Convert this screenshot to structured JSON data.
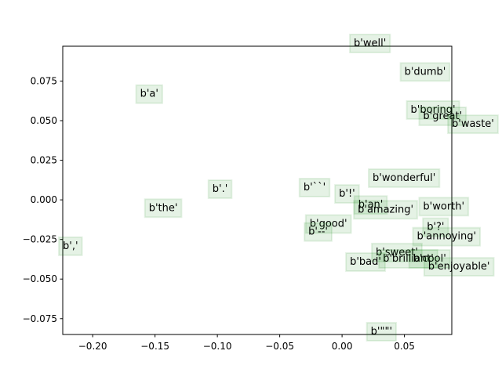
{
  "chart_data": {
    "type": "scatter",
    "labels": [
      "b'well'",
      "b'dumb'",
      "b'a'",
      "b'boring'",
      "b'great'",
      "b'waste'",
      "b'wonderful'",
      "b'.'",
      "b'``'",
      "b'!'",
      "b'the'",
      "b'an'",
      "b'amazing'",
      "b'worth'",
      "b'good'",
      "b'--'",
      "b'?'",
      "b'annoying'",
      "b','",
      "b'sweet'",
      "b'brilliant'",
      "b'cool'",
      "b'bad'",
      "b'enjoyable'",
      "b'\"\"'"
    ],
    "x": [
      0.0094,
      0.05,
      -0.162,
      0.055,
      0.065,
      0.088,
      0.0245,
      -0.104,
      -0.031,
      -0.0025,
      -0.155,
      0.013,
      0.0126,
      0.065,
      -0.026,
      -0.027,
      0.068,
      0.06,
      -0.224,
      0.027,
      0.0327,
      0.057,
      0.0063,
      0.069,
      0.023
    ],
    "values": [
      0.097,
      0.079,
      0.065,
      0.055,
      0.051,
      0.046,
      0.012,
      0.005,
      0.006,
      0.002,
      -0.007,
      -0.005,
      -0.008,
      -0.006,
      -0.017,
      -0.022,
      -0.019,
      -0.025,
      -0.031,
      -0.035,
      -0.039,
      -0.039,
      -0.041,
      -0.044,
      -0.085
    ],
    "color": "#008000",
    "xlim": [
      -0.224,
      0.088
    ],
    "ylim": [
      -0.085,
      0.097
    ],
    "xticks": [
      {
        "value": -0.2,
        "label": "−0.20"
      },
      {
        "value": -0.15,
        "label": "−0.15"
      },
      {
        "value": -0.1,
        "label": "−0.10"
      },
      {
        "value": -0.05,
        "label": "−0.05"
      },
      {
        "value": 0,
        "label": "0.00"
      },
      {
        "value": 0.05,
        "label": "0.05"
      }
    ],
    "yticks": [
      {
        "value": -0.075,
        "label": "−0.075"
      },
      {
        "value": -0.05,
        "label": "−0.050"
      },
      {
        "value": -0.025,
        "label": "−0.025"
      },
      {
        "value": 0,
        "label": "0.000"
      },
      {
        "value": 0.025,
        "label": "0.025"
      },
      {
        "value": 0.05,
        "label": "0.050"
      },
      0.075
    ]
  }
}
